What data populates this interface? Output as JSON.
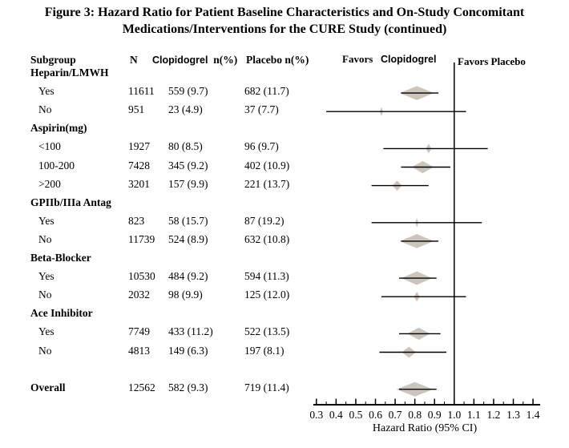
{
  "title": {
    "line1": "Figure 3: Hazard Ratio for Patient Baseline Characteristics and On-Study Concomitant",
    "line2": "Medications/Interventions for the CURE Study (continued)"
  },
  "table": {
    "headers": {
      "subgroup": "Subgroup",
      "n": "N",
      "clopidogrel_drug": "Clopidogrel",
      "clopidogrel_unit": "n(%)",
      "placebo": "Placebo n(%)"
    }
  },
  "plot": {
    "favors_left_word1": "Favors",
    "favors_left_word2": "Clopidogrel",
    "favors_right": "Favors Placebo",
    "axis_label": "Hazard Ratio (95% CI)"
  },
  "colors": {
    "diamond": "#cbc5bb",
    "line": "#000000",
    "text": "#000000"
  },
  "chart_data": {
    "type": "forest",
    "title": "Hazard Ratio for Patient Baseline Characteristics and On-Study Concomitant Medications/Interventions (CURE Study, continued)",
    "x_axis": {
      "label": "Hazard Ratio (95% CI)",
      "min": 0.3,
      "max": 1.4,
      "major_step": 0.1,
      "minor_step": 0.05,
      "tick_labels": [
        "0.3",
        "0.4",
        "0.5",
        "0.6",
        "0.7",
        "0.8",
        "0.9",
        "1.0",
        "1.1",
        "1.2",
        "1.3",
        "1.4"
      ],
      "reference_line": 1.0
    },
    "legend": {
      "left_of_reference": "Favors Clopidogrel",
      "right_of_reference": "Favors Placebo"
    },
    "rows": [
      {
        "type": "section",
        "label": "Heparin/LMWH"
      },
      {
        "type": "item",
        "label": "Yes",
        "n": 11611,
        "clopidogrel": "559 (9.7)",
        "placebo": "682 (11.7)",
        "hr": 0.81,
        "ci_low": 0.73,
        "ci_high": 0.92
      },
      {
        "type": "item",
        "label": "No",
        "n": 951,
        "clopidogrel": "23 (4.9)",
        "placebo": "37 (7.7)",
        "hr": 0.63,
        "ci_low": 0.35,
        "ci_high": 1.06
      },
      {
        "type": "section",
        "label": "Aspirin(mg)"
      },
      {
        "type": "item",
        "label": "<100",
        "n": 1927,
        "clopidogrel": "80 (8.5)",
        "placebo": "96 (9.7)",
        "hr": 0.87,
        "ci_low": 0.64,
        "ci_high": 1.17
      },
      {
        "type": "item",
        "label": "100-200",
        "n": 7428,
        "clopidogrel": "345 (9.2)",
        "placebo": "402 (10.9)",
        "hr": 0.84,
        "ci_low": 0.73,
        "ci_high": 0.98
      },
      {
        "type": "item",
        "label": ">200",
        "n": 3201,
        "clopidogrel": "157 (9.9)",
        "placebo": "221 (13.7)",
        "hr": 0.71,
        "ci_low": 0.58,
        "ci_high": 0.87
      },
      {
        "type": "section",
        "label": "GPIIb/IIIa Antag"
      },
      {
        "type": "item",
        "label": "Yes",
        "n": 823,
        "clopidogrel": "58 (15.7)",
        "placebo": "87 (19.2)",
        "hr": 0.81,
        "ci_low": 0.58,
        "ci_high": 1.14
      },
      {
        "type": "item",
        "label": "No",
        "n": 11739,
        "clopidogrel": "524 (8.9)",
        "placebo": "632 (10.8)",
        "hr": 0.81,
        "ci_low": 0.73,
        "ci_high": 0.92
      },
      {
        "type": "section",
        "label": "Beta-Blocker"
      },
      {
        "type": "item",
        "label": "Yes",
        "n": 10530,
        "clopidogrel": "484 (9.2)",
        "placebo": "594 (11.3)",
        "hr": 0.81,
        "ci_low": 0.72,
        "ci_high": 0.91
      },
      {
        "type": "item",
        "label": "No",
        "n": 2032,
        "clopidogrel": "98 (9.9)",
        "placebo": "125 (12.0)",
        "hr": 0.81,
        "ci_low": 0.63,
        "ci_high": 1.06
      },
      {
        "type": "section",
        "label": "Ace Inhibitor"
      },
      {
        "type": "item",
        "label": "Yes",
        "n": 7749,
        "clopidogrel": "433 (11.2)",
        "placebo": "522 (13.5)",
        "hr": 0.82,
        "ci_low": 0.72,
        "ci_high": 0.93
      },
      {
        "type": "item",
        "label": "No",
        "n": 4813,
        "clopidogrel": "149 (6.3)",
        "placebo": "197 (8.1)",
        "hr": 0.77,
        "ci_low": 0.62,
        "ci_high": 0.96
      },
      {
        "type": "spacer"
      },
      {
        "type": "overall",
        "label": "Overall",
        "n": 12562,
        "clopidogrel": "582 (9.3)",
        "placebo": "719 (11.4)",
        "hr": 0.8,
        "ci_low": 0.72,
        "ci_high": 0.91
      }
    ]
  }
}
